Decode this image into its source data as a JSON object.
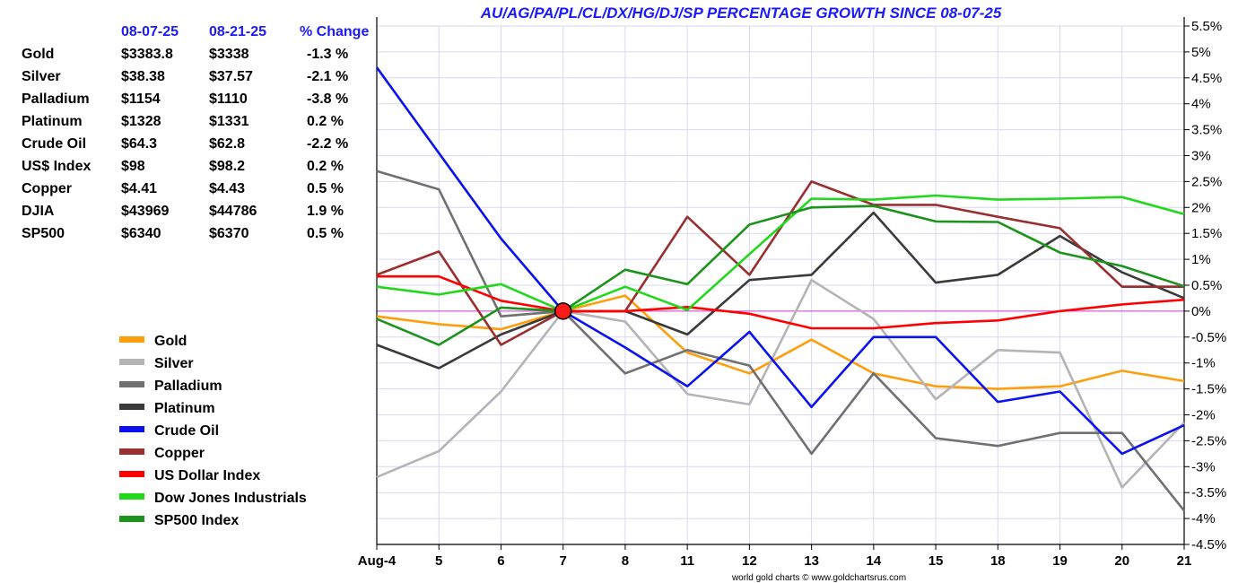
{
  "chart_data": {
    "type": "line",
    "title": "AU/AG/PA/PL/CL/DX/HG/DJ/SP PERCENTAGE GROWTH SINCE 08-07-25",
    "x": [
      "Aug-4",
      "5",
      "6",
      "7",
      "8",
      "11",
      "12",
      "13",
      "14",
      "15",
      "18",
      "19",
      "20",
      "21"
    ],
    "ylim": [
      -4.5,
      5.5
    ],
    "yticks": [
      "5.5%",
      "5%",
      "4.5%",
      "4%",
      "3.5%",
      "3%",
      "2.5%",
      "2%",
      "1.5%",
      "1%",
      "0.5%",
      "0%",
      "-0.5%",
      "-1%",
      "-1.5%",
      "-2%",
      "-2.5%",
      "-3%",
      "-3.5%",
      "-4%",
      "-4.5%"
    ],
    "grid": true,
    "legend_position": "left",
    "reference_point": {
      "x": "7",
      "y": 0
    },
    "series": [
      {
        "name": "Gold",
        "color": "#ff9e0c",
        "values": [
          -0.1,
          -0.25,
          -0.35,
          0.0,
          0.3,
          -0.8,
          -1.2,
          -0.55,
          -1.2,
          -1.45,
          -1.5,
          -1.45,
          -1.15,
          -1.35
        ]
      },
      {
        "name": "Silver",
        "color": "#b4b4b4",
        "values": [
          -3.2,
          -2.7,
          -1.55,
          0.0,
          -0.2,
          -1.6,
          -1.8,
          0.6,
          -0.15,
          -1.7,
          -0.75,
          -0.8,
          -3.4,
          -2.15
        ]
      },
      {
        "name": "Palladium",
        "color": "#707070",
        "values": [
          2.7,
          2.35,
          -0.1,
          0.0,
          -1.2,
          -0.75,
          -1.05,
          -2.75,
          -1.2,
          -2.45,
          -2.6,
          -2.35,
          -2.35,
          -3.85
        ]
      },
      {
        "name": "Platinum",
        "color": "#3a3a3a",
        "values": [
          -0.65,
          -1.1,
          -0.45,
          0.0,
          0.0,
          -0.45,
          0.6,
          0.7,
          1.9,
          0.55,
          0.7,
          1.45,
          0.75,
          0.25
        ]
      },
      {
        "name": "Crude Oil",
        "color": "#0a12f0",
        "values": [
          4.7,
          3.05,
          1.4,
          0.0,
          -0.7,
          -1.45,
          -0.4,
          -1.85,
          -0.5,
          -0.5,
          -1.75,
          -1.55,
          -2.75,
          -2.2
        ]
      },
      {
        "name": "Copper",
        "color": "#9a2f2f",
        "values": [
          0.7,
          1.15,
          -0.65,
          0.0,
          0.0,
          1.82,
          0.7,
          2.5,
          2.05,
          2.05,
          1.82,
          1.6,
          0.47,
          0.47
        ]
      },
      {
        "name": "US Dollar Index",
        "color": "#ff0000",
        "values": [
          0.67,
          0.67,
          0.2,
          0.0,
          0.0,
          0.08,
          -0.05,
          -0.33,
          -0.33,
          -0.23,
          -0.18,
          0.0,
          0.13,
          0.22
        ]
      },
      {
        "name": "Dow Jones Industrials",
        "color": "#21d81d",
        "values": [
          0.47,
          0.32,
          0.52,
          0.0,
          0.47,
          0.02,
          1.1,
          2.17,
          2.15,
          2.23,
          2.15,
          2.17,
          2.2,
          1.87
        ]
      },
      {
        "name": "SP500 Index",
        "color": "#1c931c",
        "values": [
          -0.15,
          -0.65,
          0.07,
          0.0,
          0.8,
          0.52,
          1.67,
          2.0,
          2.03,
          1.73,
          1.72,
          1.13,
          0.87,
          0.48
        ]
      }
    ]
  },
  "table": {
    "headers": [
      "",
      "08-07-25",
      "08-21-25",
      "% Change"
    ],
    "rows": [
      {
        "name": "Gold",
        "start": "$3383.8",
        "end": "$3338",
        "change": "-1.3 %"
      },
      {
        "name": "Silver",
        "start": "$38.38",
        "end": "$37.57",
        "change": "-2.1 %"
      },
      {
        "name": "Palladium",
        "start": "$1154",
        "end": "$1110",
        "change": "-3.8 %"
      },
      {
        "name": "Platinum",
        "start": "$1328",
        "end": "$1331",
        "change": "0.2 %"
      },
      {
        "name": "Crude Oil",
        "start": "$64.3",
        "end": "$62.8",
        "change": "-2.2 %"
      },
      {
        "name": "US$ Index",
        "start": "$98",
        "end": "$98.2",
        "change": "0.2 %"
      },
      {
        "name": "Copper",
        "start": "$4.41",
        "end": "$4.43",
        "change": "0.5 %"
      },
      {
        "name": "DJIA",
        "start": "$43969",
        "end": "$44786",
        "change": "1.9 %"
      },
      {
        "name": "SP500",
        "start": "$6340",
        "end": "$6370",
        "change": "0.5 %"
      }
    ]
  },
  "credit": "world gold charts © www.goldchartsrus.com",
  "colors": {
    "header_text": "#1a1aff",
    "grid": "#d8d8ee",
    "zero_line": "#d040d0"
  }
}
